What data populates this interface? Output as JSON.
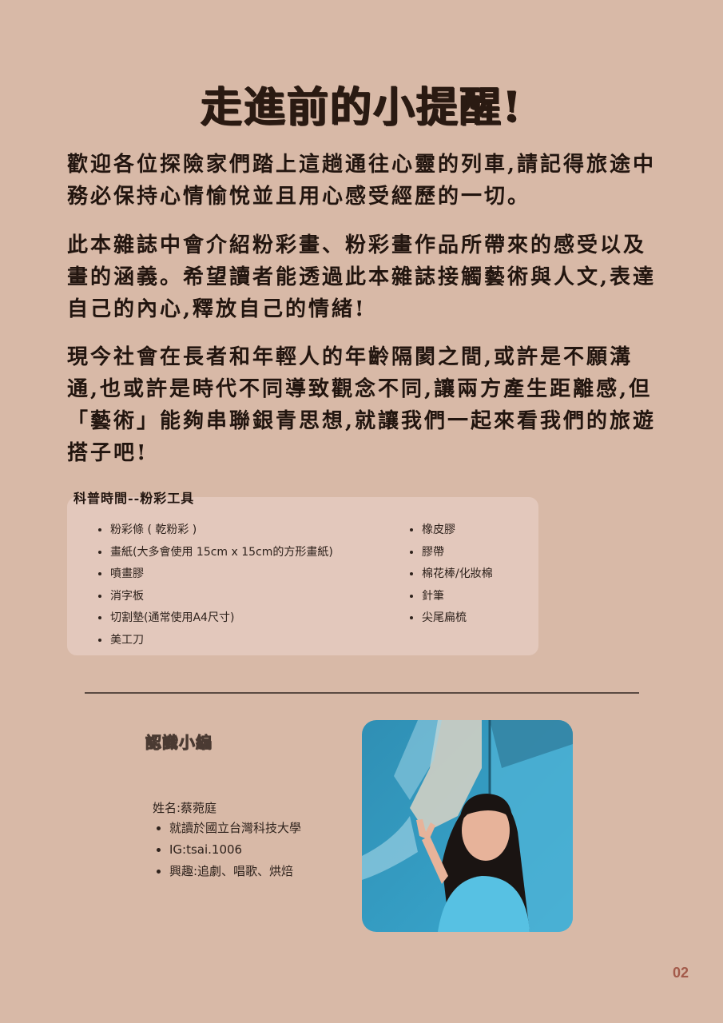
{
  "title": "走進前的小提醒!",
  "intro": {
    "p1": "歡迎各位探險家們踏上這趟通往心靈的列車,請記得旅途中務必保持心情愉悅並且用心感受經歷的一切。",
    "p2": "此本雜誌中會介紹粉彩畫、粉彩畫作品所帶來的感受以及畫的涵義。希望讀者能透過此本雜誌接觸藝術與人文,表達自己的內心,釋放自己的情緒!",
    "p3": "現今社會在長者和年輕人的年齡隔閡之間,或許是不願溝通,也或許是時代不同導致觀念不同,讓兩方產生距離感,但「藝術」能夠串聯銀青思想,就讓我們一起來看我們的旅遊搭子吧!"
  },
  "tools": {
    "heading": "科普時間--粉彩工具",
    "left": [
      "粉彩條 ( 乾粉彩 )",
      "畫紙(大多會使用 15cm x 15cm的方形畫紙)",
      "噴畫膠",
      "消字板",
      "切割墊(通常使用A4尺寸)",
      "美工刀"
    ],
    "right": [
      "橡皮膠",
      "膠帶",
      "棉花棒/化妝棉",
      "針筆",
      "尖尾扁梳"
    ]
  },
  "editor": {
    "heading": "認識小編",
    "name": "姓名:蔡菀庭",
    "details": [
      "就讀於國立台灣科技大學",
      "IG:tsai.1006",
      "興趣:追劇、唱歌、烘焙"
    ]
  },
  "page_number": "02",
  "colors": {
    "background": "#d8b9a7",
    "panel": "#e3c8bc",
    "page_number": "#a35a4a"
  }
}
